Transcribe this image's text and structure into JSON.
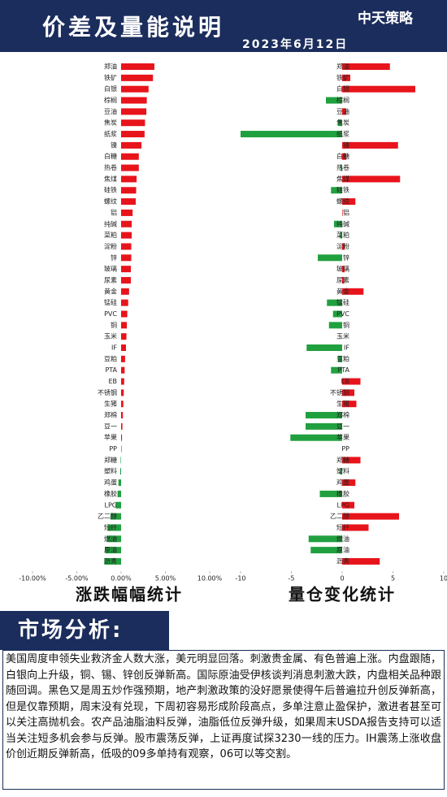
{
  "header": {
    "title": "价差及量能说明",
    "date": "2023年6月12日",
    "logo": "中天策略"
  },
  "chart_data": [
    {
      "type": "bar",
      "orientation": "horizontal",
      "title": "涨跌幅幅统计",
      "categories": [
        "郑油",
        "铁矿",
        "白银",
        "棕榈",
        "豆油",
        "焦炭",
        "纸浆",
        "镍",
        "白糖",
        "热卷",
        "焦煤",
        "硅铁",
        "螺纹",
        "铝",
        "纯碱",
        "菜粕",
        "淀粉",
        "锌",
        "玻璃",
        "尿素",
        "黄金",
        "锰硅",
        "PVC",
        "铜",
        "玉米",
        "IF",
        "豆粕",
        "PTA",
        "EB",
        "不锈钢",
        "生猪",
        "郑棉",
        "豆一",
        "苹果",
        "PP",
        "郑糖",
        "塑料",
        "鸡蛋",
        "橡胶",
        "LPG",
        "乙二醇",
        "短纤",
        "燃油",
        "原油",
        "沥青"
      ],
      "values": [
        3.76,
        3.6,
        3.1,
        2.9,
        2.85,
        2.7,
        2.65,
        2.3,
        2.0,
        2.0,
        1.75,
        1.7,
        1.65,
        1.3,
        1.2,
        1.2,
        1.15,
        1.15,
        1.1,
        1.1,
        0.9,
        0.8,
        0.7,
        0.65,
        0.6,
        0.55,
        0.45,
        0.4,
        0.35,
        0.3,
        0.25,
        0.2,
        0.15,
        0.1,
        0.05,
        -0.05,
        -0.1,
        -0.3,
        -0.4,
        -0.6,
        -1.2,
        -1.5,
        -1.6,
        -1.8,
        -1.9
      ],
      "xlim": [
        -10,
        10
      ],
      "xticks": [
        {
          "value": -10,
          "label": "-10.00%"
        },
        {
          "value": -5,
          "label": "-5.00%"
        },
        {
          "value": 0,
          "label": "0.00%"
        },
        {
          "value": 5,
          "label": "5.00%"
        },
        {
          "value": 10,
          "label": "10.00%"
        }
      ],
      "positive_color": "#e8141b",
      "negative_color": "#21a03f"
    },
    {
      "type": "bar",
      "orientation": "horizontal",
      "title": "量仓变化统计",
      "categories": [
        "郑油",
        "铁矿",
        "白银",
        "棕榈",
        "豆油",
        "焦炭",
        "纸浆",
        "镍",
        "白糖",
        "热卷",
        "焦煤",
        "硅铁",
        "螺纹",
        "铝",
        "纯碱",
        "菜粕",
        "淀粉",
        "锌",
        "玻璃",
        "尿素",
        "黄金",
        "锰硅",
        "PVC",
        "铜",
        "玉米",
        "IF",
        "豆粕",
        "PTA",
        "EB",
        "不锈钢",
        "生猪",
        "郑棉",
        "豆一",
        "苹果",
        "PP",
        "郑糖",
        "塑料",
        "鸡蛋",
        "橡胶",
        "LPG",
        "乙二醇",
        "短纤",
        "燃油",
        "原油",
        "沥青"
      ],
      "values": [
        4.7,
        0.8,
        7.2,
        -1.6,
        0.4,
        -0.4,
        -10,
        5.5,
        0.4,
        -0.15,
        5.7,
        -1.1,
        1.3,
        0.05,
        -0.8,
        -0.2,
        0.25,
        -2.4,
        0.25,
        0.2,
        2.1,
        -1.5,
        -0.9,
        -1.3,
        0,
        -3.5,
        -0.4,
        -1.1,
        1.8,
        1.2,
        1.4,
        -3.6,
        -3.6,
        -5.1,
        0,
        1.8,
        -0.2,
        1.3,
        -2.2,
        1.2,
        5.6,
        2.6,
        -3.3,
        -3.1,
        3.7
      ],
      "xlim": [
        -10,
        10
      ],
      "xticks": [
        -10,
        -5,
        0,
        5,
        10
      ],
      "positive_color": "#e8141b",
      "negative_color": "#21a03f"
    }
  ],
  "analysis": {
    "title": "市场分析:",
    "text": "美国周度申领失业救济金人数大涨，美元明显回落。刺激贵金属、有色普遍上涨。内盘跟随，白银向上升级，铜、锡、锌创反弹新高。国际原油受伊核谈判消息刺激大跌，内盘相关品种跟随回调。黑色又是周五炒作强预期，地产刺激政策的没好愿景使得午后普遍拉升创反弹新高，但是仅靠预期，周末没有兑现，下周初容易形成阶段高点，多单注意止盈保护，激进者甚至可以关注高抛机会。农产品油脂油料反弹，油脂低位反弹升级，如果周末USDA报告支持可以适当关注短多机会参与反弹。股市震荡反弹，上证再度试探3230一线的压力。IH震荡上涨收盘价创近期反弹新高，低吸的09多单持有观察，06可以等交割。"
  }
}
